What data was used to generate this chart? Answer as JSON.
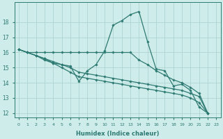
{
  "xlabel": "Humidex (Indice chaleur)",
  "bg_color": "#ceecea",
  "grid_color": "#aed4d0",
  "line_color": "#2d7a72",
  "series": [
    [
      16.2,
      16.0,
      15.8,
      15.5,
      15.3,
      15.2,
      15.1,
      14.1,
      14.8,
      15.2,
      16.1,
      17.8,
      18.1,
      18.5,
      18.7,
      16.7,
      14.9,
      14.8,
      13.8,
      13.9,
      13.5,
      12.4,
      12.0
    ],
    [
      16.2,
      16.0,
      16.0,
      16.0,
      16.0,
      16.0,
      16.0,
      16.0,
      16.0,
      16.0,
      16.0,
      16.0,
      16.0,
      16.0,
      15.5,
      15.2,
      14.8,
      14.5,
      14.2,
      14.0,
      13.7,
      13.3,
      12.0
    ],
    [
      16.2,
      16.0,
      15.8,
      15.6,
      15.4,
      15.2,
      15.0,
      14.7,
      14.6,
      14.5,
      14.4,
      14.3,
      14.2,
      14.1,
      14.0,
      13.9,
      13.8,
      13.7,
      13.6,
      13.5,
      13.3,
      13.1,
      12.0
    ],
    [
      16.2,
      16.0,
      15.8,
      15.6,
      15.3,
      15.0,
      14.7,
      14.4,
      14.3,
      14.2,
      14.1,
      14.0,
      13.9,
      13.8,
      13.7,
      13.6,
      13.5,
      13.4,
      13.3,
      13.2,
      13.0,
      12.7,
      12.0
    ]
  ],
  "x_ticks": [
    0,
    1,
    2,
    3,
    4,
    5,
    6,
    7,
    8,
    9,
    10,
    11,
    12,
    13,
    14,
    15,
    16,
    17,
    18,
    19,
    20,
    21,
    22,
    23
  ],
  "ylim": [
    11.7,
    19.3
  ],
  "yticks": [
    12,
    13,
    14,
    15,
    16,
    17,
    18
  ],
  "marker": "D",
  "marker_size": 1.8,
  "line_width": 0.9
}
